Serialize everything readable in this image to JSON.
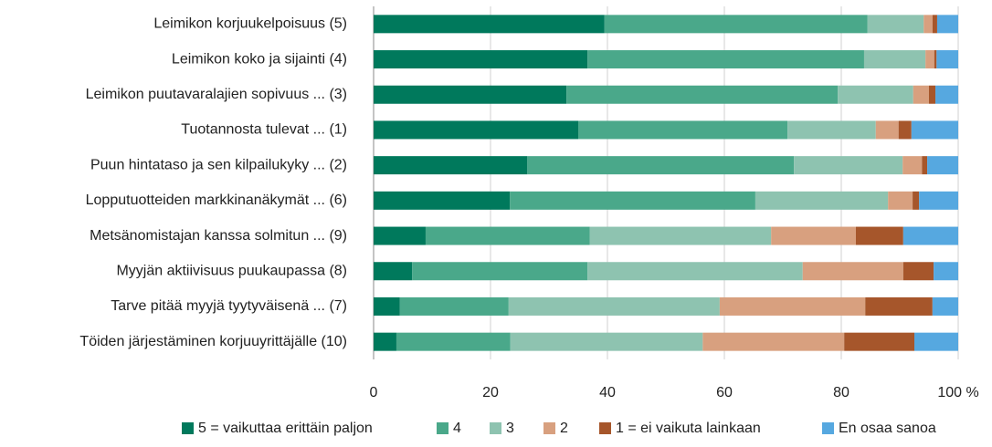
{
  "chart_data": {
    "type": "stacked_bar_horizontal",
    "categories": [
      "Leimikon korjuukelpoisuus (5)",
      "Leimikon koko ja sijainti (4)",
      "Leimikon puutavaralajien sopivuus ... (3)",
      "Tuotannosta tulevat ... (1)",
      "Puun hintataso ja sen kilpailukyky ... (2)",
      "Lopputuotteiden markkinanäkymät ... (6)",
      "Metsänomistajan kanssa solmitun ... (9)",
      "Myyjän aktiivisuus puukaupassa (8)",
      "Tarve pitää myyjä tyytyväisenä ... (7)",
      "Töiden järjestäminen korjuuyrittäjälle (10)"
    ],
    "series": [
      {
        "name": "5 = vaikuttaa erittäin paljon",
        "color": "#00795c",
        "values": [
          39.5,
          36.6,
          33.0,
          35.0,
          26.3,
          23.3,
          8.9,
          6.6,
          4.5,
          3.9
        ]
      },
      {
        "name": "4",
        "color": "#4aa88a",
        "values": [
          45.0,
          47.3,
          46.4,
          35.8,
          45.6,
          42.0,
          28.1,
          30.0,
          18.6,
          19.5
        ]
      },
      {
        "name": "3",
        "color": "#8ec3b0",
        "values": [
          9.6,
          10.5,
          12.9,
          15.1,
          18.6,
          22.7,
          31.0,
          36.8,
          36.1,
          32.9
        ]
      },
      {
        "name": "2",
        "color": "#d8a07f",
        "values": [
          1.5,
          1.5,
          2.7,
          3.9,
          3.3,
          4.2,
          14.5,
          17.2,
          24.9,
          24.2
        ]
      },
      {
        "name": "1 = ei vaikuta lainkaan",
        "color": "#a6562b",
        "values": [
          0.8,
          0.4,
          1.1,
          2.2,
          0.9,
          1.1,
          8.1,
          5.2,
          11.5,
          12.0
        ]
      },
      {
        "name": "En osaa sanoa",
        "color": "#56a8e0",
        "values": [
          3.6,
          3.7,
          3.9,
          8.0,
          5.3,
          6.7,
          9.4,
          4.2,
          4.4,
          7.5
        ]
      }
    ],
    "xlim": [
      0,
      100
    ],
    "xticks": [
      0,
      20,
      40,
      60,
      80,
      {
        "value": 100,
        "label": "100 %"
      }
    ],
    "grid": true
  }
}
